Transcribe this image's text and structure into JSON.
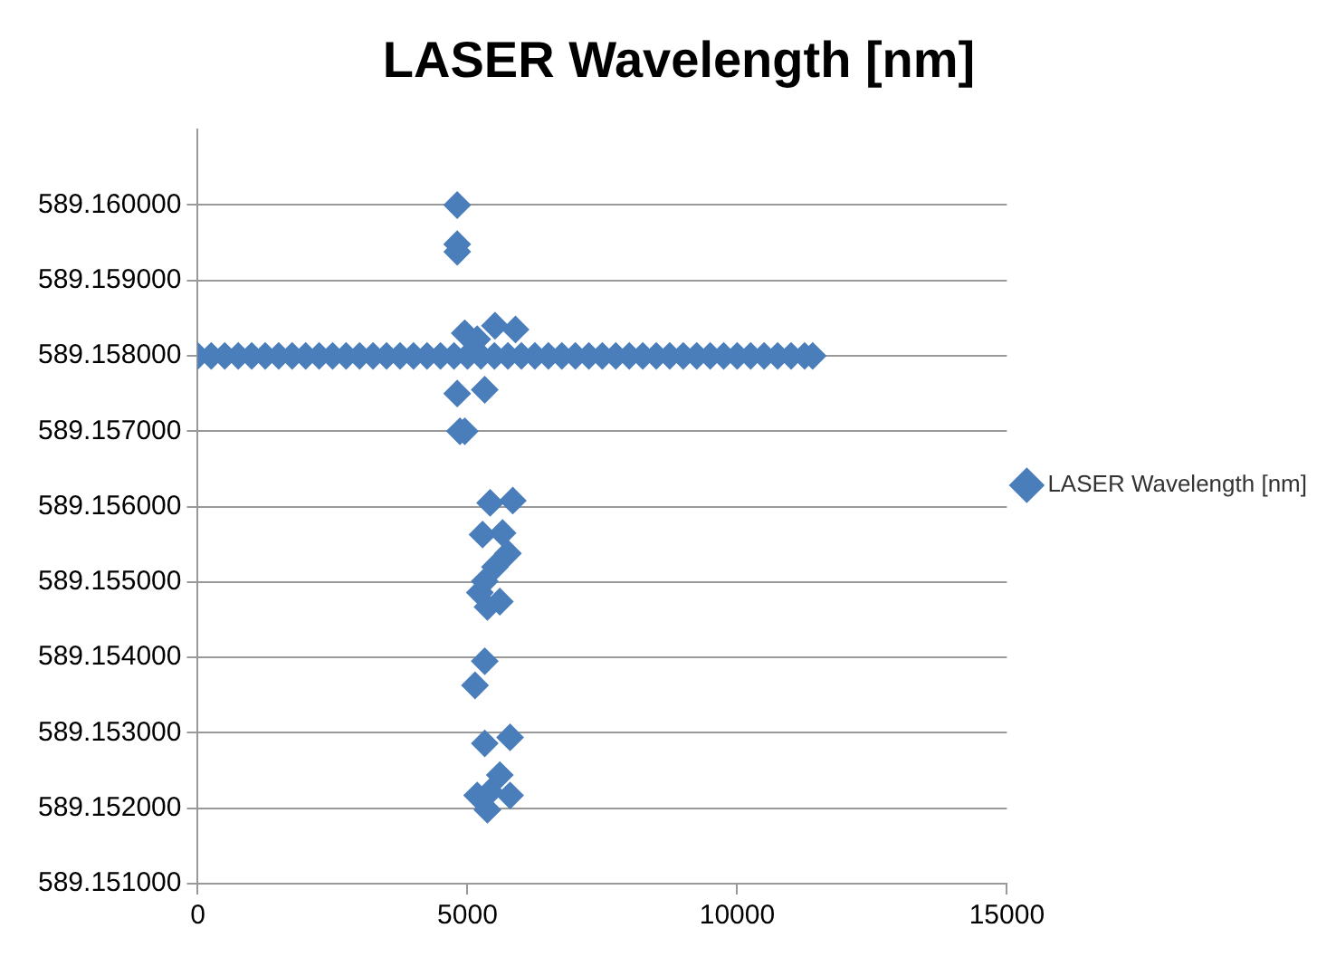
{
  "chart_data": {
    "type": "scatter",
    "title": "LASER Wavelength [nm]",
    "legend": "right",
    "marker": "diamond",
    "grid": "y",
    "xlim": [
      0,
      15000
    ],
    "xticks": [
      0,
      5000,
      10000,
      15000
    ],
    "ylim": [
      589.151,
      589.161
    ],
    "yticks": [
      {
        "value": 589.151,
        "label": "589.151000"
      },
      {
        "value": 589.152,
        "label": "589.152000"
      },
      {
        "value": 589.153,
        "label": "589.153000"
      },
      {
        "value": 589.154,
        "label": "589.154000"
      },
      {
        "value": 589.155,
        "label": "589.155000"
      },
      {
        "value": 589.156,
        "label": "589.156000"
      },
      {
        "value": 589.157,
        "label": "589.157000"
      },
      {
        "value": 589.158,
        "label": "589.158000"
      },
      {
        "value": 589.159,
        "label": "589.159000"
      },
      {
        "value": 589.16,
        "label": "589.160000"
      }
    ],
    "series": [
      {
        "name": "LASER Wavelength [nm]",
        "color": "#4a7ebb",
        "x": [
          0,
          250,
          500,
          750,
          1000,
          1250,
          1500,
          1750,
          2000,
          2250,
          2500,
          2750,
          3000,
          3250,
          3500,
          3750,
          4000,
          4250,
          4500,
          4750,
          5000,
          5250,
          5500,
          5750,
          6000,
          6250,
          6500,
          6750,
          7000,
          7250,
          7500,
          7750,
          8000,
          8250,
          8500,
          8750,
          9000,
          9250,
          9500,
          9750,
          10000,
          10250,
          10500,
          10750,
          11000,
          11250,
          11400,
          4810,
          4810,
          4810,
          4950,
          5510,
          5890,
          5180,
          4810,
          5320,
          4950,
          4860,
          5420,
          5840,
          5280,
          5650,
          5750,
          5510,
          5320,
          5230,
          5600,
          5370,
          5320,
          5140,
          5320,
          5790,
          5600,
          5420,
          5180,
          5790,
          5370
        ],
        "values": [
          589.158,
          589.158,
          589.158,
          589.158,
          589.158,
          589.158,
          589.158,
          589.158,
          589.158,
          589.158,
          589.158,
          589.158,
          589.158,
          589.158,
          589.158,
          589.158,
          589.158,
          589.158,
          589.158,
          589.158,
          589.158,
          589.158,
          589.158,
          589.158,
          589.158,
          589.158,
          589.158,
          589.158,
          589.158,
          589.158,
          589.158,
          589.158,
          589.158,
          589.158,
          589.158,
          589.158,
          589.158,
          589.158,
          589.158,
          589.158,
          589.158,
          589.158,
          589.158,
          589.158,
          589.158,
          589.158,
          589.158,
          589.16,
          589.15948,
          589.15938,
          589.1583,
          589.1584,
          589.15835,
          589.15822,
          589.1575,
          589.15755,
          589.157,
          589.157,
          589.15605,
          589.15608,
          589.15563,
          589.15565,
          589.15538,
          589.1552,
          589.15501,
          589.15486,
          589.15474,
          589.15467,
          589.15395,
          589.15363,
          589.15286,
          589.15294,
          589.15244,
          589.15222,
          589.15217,
          589.15217,
          589.15198
        ]
      }
    ]
  }
}
